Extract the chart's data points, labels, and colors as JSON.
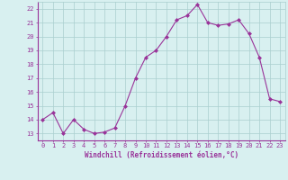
{
  "x": [
    0,
    1,
    2,
    3,
    4,
    5,
    6,
    7,
    8,
    9,
    10,
    11,
    12,
    13,
    14,
    15,
    16,
    17,
    18,
    19,
    20,
    21,
    22,
    23
  ],
  "y": [
    14.0,
    14.5,
    13.0,
    14.0,
    13.3,
    13.0,
    13.1,
    13.4,
    15.0,
    17.0,
    18.5,
    19.0,
    20.0,
    21.2,
    21.5,
    22.3,
    21.0,
    20.8,
    20.9,
    21.2,
    20.2,
    18.5,
    15.5,
    15.3
  ],
  "line_color": "#993399",
  "marker": "D",
  "markersize": 2.0,
  "linewidth": 0.8,
  "xlim": [
    -0.5,
    23.5
  ],
  "ylim": [
    12.5,
    22.5
  ],
  "yticks": [
    13,
    14,
    15,
    16,
    17,
    18,
    19,
    20,
    21,
    22
  ],
  "xticks": [
    0,
    1,
    2,
    3,
    4,
    5,
    6,
    7,
    8,
    9,
    10,
    11,
    12,
    13,
    14,
    15,
    16,
    17,
    18,
    19,
    20,
    21,
    22,
    23
  ],
  "xlabel": "Windchill (Refroidissement éolien,°C)",
  "bg_color": "#d8f0f0",
  "grid_color": "#aacece",
  "tick_color": "#993399",
  "label_color": "#993399",
  "tick_fontsize": 5.0,
  "xlabel_fontsize": 5.5
}
